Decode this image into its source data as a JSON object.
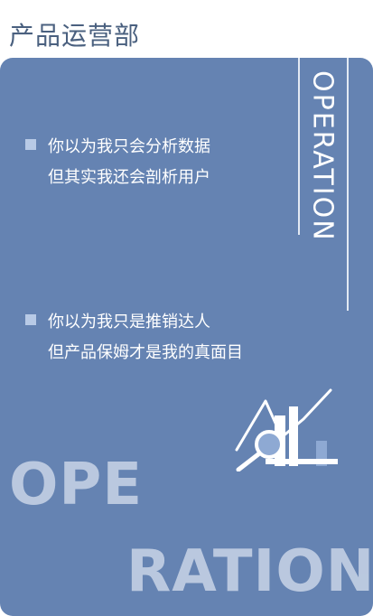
{
  "header": {
    "title": "产品运营部"
  },
  "card": {
    "side_label": "OPERATION",
    "blocks": [
      {
        "lines": [
          "你以为我只会分析数据",
          "但其实我还会剖析用户"
        ]
      },
      {
        "lines": [
          "你以为我只是推销达人",
          "但产品保姆才是我的真面目"
        ]
      }
    ],
    "big_word": {
      "part1": "OPE",
      "part2": "RATION"
    }
  },
  "icon": {
    "name": "analytics-magnifier-chart-icon"
  }
}
